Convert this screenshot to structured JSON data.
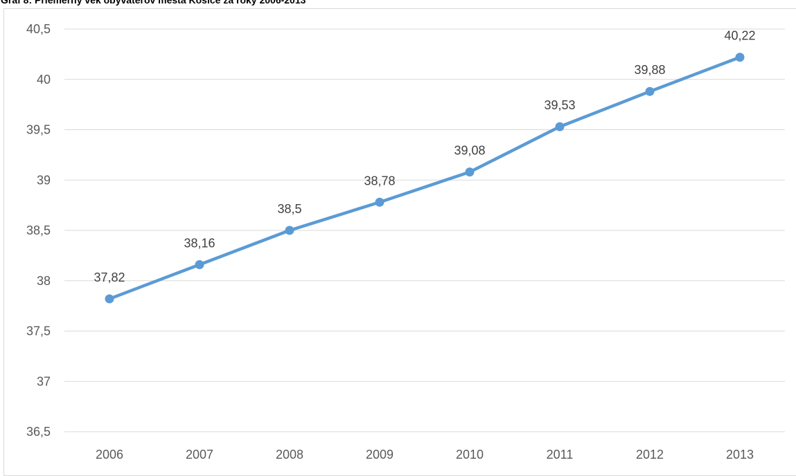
{
  "chart_data": {
    "type": "line",
    "title": "Graf 8: Priemerný vek obyvateľov mesta Košice za roky 2006-2013",
    "xlabel": "",
    "ylabel": "",
    "categories": [
      "2006",
      "2007",
      "2008",
      "2009",
      "2010",
      "2011",
      "2012",
      "2013"
    ],
    "series": [
      {
        "values": [
          37.82,
          38.16,
          38.5,
          38.78,
          39.08,
          39.53,
          39.88,
          40.22
        ],
        "data_labels": [
          "37,82",
          "38,16",
          "38,5",
          "38,78",
          "39,08",
          "39,53",
          "39,88",
          "40,22"
        ],
        "color": "#5b9bd5"
      }
    ],
    "yticks": [
      36.5,
      37,
      37.5,
      38,
      38.5,
      39,
      39.5,
      40,
      40.5
    ],
    "ytick_labels": [
      "36,5",
      "37",
      "37,5",
      "38",
      "38,5",
      "39",
      "39,5",
      "40",
      "40,5"
    ],
    "ylim": [
      36.5,
      40.5
    ],
    "grid": true,
    "legend": "none",
    "gridline_color": "#d9d9d9",
    "tick_label_color": "#595959"
  }
}
